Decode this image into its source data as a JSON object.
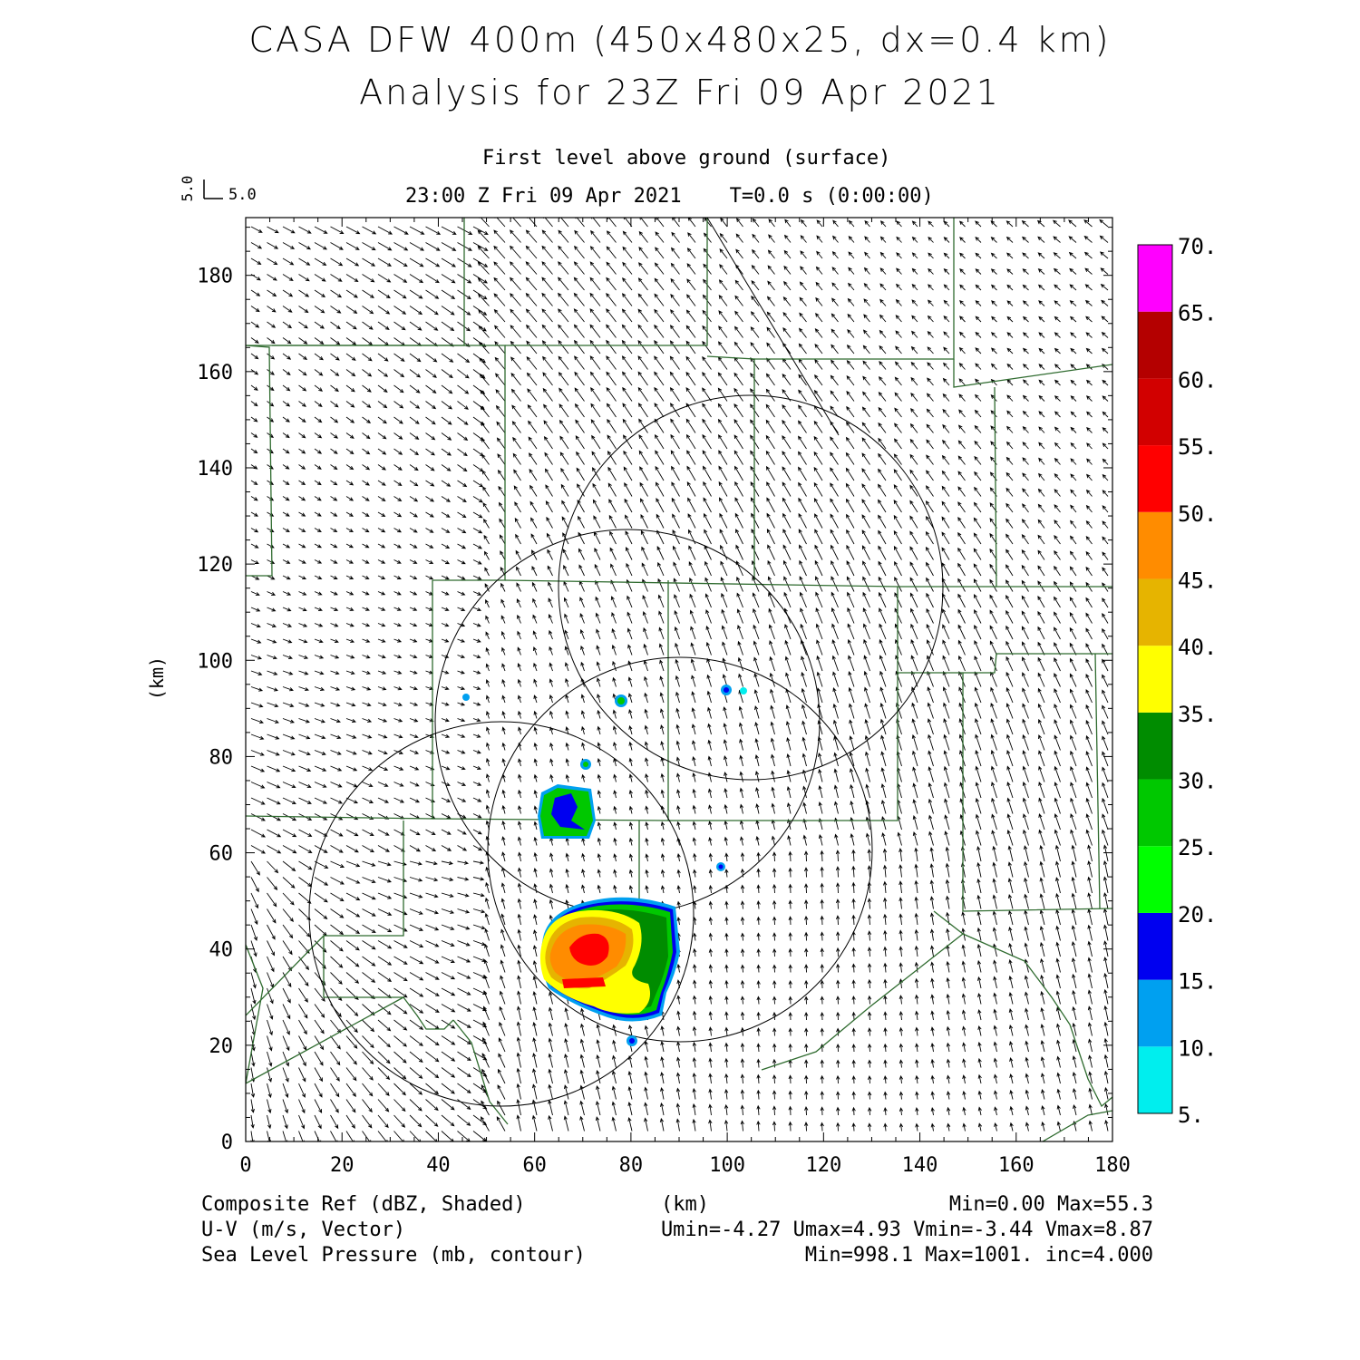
{
  "title": {
    "line1": "CASA DFW 400m (450x480x25, dx=0.4 km)",
    "line2": "Analysis for 23Z Fri 09 Apr 2021"
  },
  "subtitle": {
    "level": "First level above ground (surface)",
    "time": "23:00 Z Fri 09 Apr 2021    T=0.0 s (0:00:00)"
  },
  "vector_key": {
    "v_label": "5.0",
    "u_label": "5.0"
  },
  "axes": {
    "x_label": "(km)",
    "y_label": "(km)",
    "x_ticks": [
      "0",
      "20",
      "40",
      "60",
      "80",
      "100",
      "120",
      "140",
      "160",
      "180"
    ],
    "y_ticks": [
      "0",
      "20",
      "40",
      "60",
      "80",
      "100",
      "120",
      "140",
      "160",
      "180"
    ],
    "x_range": [
      0,
      180
    ],
    "y_range": [
      0,
      192
    ]
  },
  "colorbar": {
    "labels": [
      "5.",
      "10.",
      "15.",
      "20.",
      "25.",
      "30.",
      "35.",
      "40.",
      "45.",
      "50.",
      "55.",
      "60.",
      "65.",
      "70."
    ],
    "colors": [
      "#00eeee",
      "#00a0f0",
      "#0000f0",
      "#00ff00",
      "#00c800",
      "#008c00",
      "#ffff00",
      "#e6b400",
      "#ff8c00",
      "#ff0000",
      "#d20000",
      "#b40000",
      "#ff00ff"
    ]
  },
  "footer": {
    "field1_name": "Composite Ref (dBZ, Shaded)",
    "field1_units_label": "(km)",
    "field1_stats": "Min=0.00 Max=55.3",
    "field2_name": "U-V (m/s, Vector)",
    "field2_stats": "Umin=-4.27 Umax=4.93 Vmin=-3.44 Vmax=8.87",
    "field3_name": "Sea Level Pressure (mb, contour)",
    "field3_stats": "Min=998.1 Max=1001. inc=4.000"
  },
  "map_content": {
    "boundary_color": "#2f6b2f",
    "storm_cells_km": [
      {
        "x": 73,
        "y": 38,
        "max_dbz": 55.3
      },
      {
        "x": 68,
        "y": 68,
        "max_dbz": 30
      },
      {
        "x": 78,
        "y": 91,
        "max_dbz": 25
      },
      {
        "x": 71,
        "y": 78,
        "max_dbz": 25
      },
      {
        "x": 100,
        "y": 93,
        "max_dbz": 15
      },
      {
        "x": 46,
        "y": 92,
        "max_dbz": 10
      },
      {
        "x": 104,
        "y": 93,
        "max_dbz": 10
      },
      {
        "x": 99,
        "y": 57,
        "max_dbz": 15
      },
      {
        "x": 80,
        "y": 21,
        "max_dbz": 15
      }
    ],
    "radar_range_circles_km": [
      {
        "cx": 53,
        "cy": 46,
        "r": 40
      },
      {
        "cx": 79,
        "cy": 86,
        "r": 40
      },
      {
        "cx": 90,
        "cy": 60,
        "r": 40
      },
      {
        "cx": 104,
        "cy": 115,
        "r": 40
      }
    ]
  }
}
